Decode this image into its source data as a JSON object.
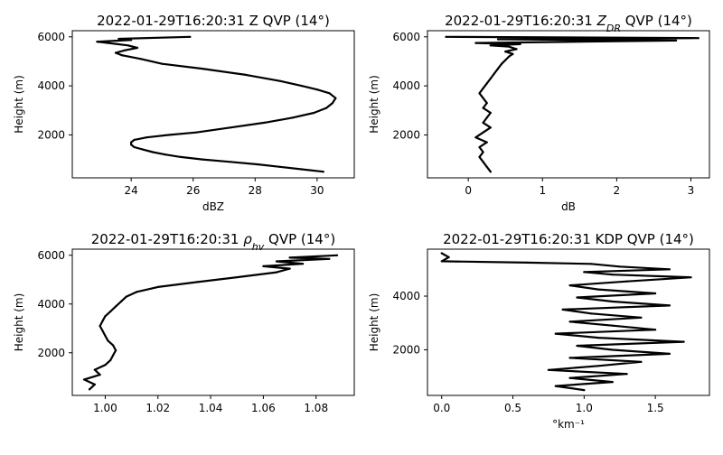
{
  "chart_data": [
    {
      "type": "line",
      "title": "2022-01-29T16:20:31 Z QVP (14°)",
      "xlabel": "dBZ",
      "ylabel": "Height (m)",
      "xlim": [
        22.1,
        31.2
      ],
      "ylim": [
        250,
        6250
      ],
      "xticks": [
        24,
        26,
        28,
        30
      ],
      "xticklabels": [
        "24",
        "26",
        "28",
        "30"
      ],
      "yticks": [
        2000,
        4000,
        6000
      ],
      "yticklabels": [
        "2000",
        "4000",
        "6000"
      ],
      "series": [
        {
          "x": [
            30.2,
            29.5,
            28.8,
            28.1,
            27.2,
            26.3,
            25.6,
            25.1,
            24.7,
            24.4,
            24.1,
            24.0,
            24.0,
            24.1,
            24.5,
            25.2,
            26.1,
            27.2,
            28.3,
            29.2,
            29.9,
            30.3,
            30.5,
            30.6,
            30.4,
            30.0,
            29.5,
            28.8,
            27.7,
            26.3,
            25.0,
            24.3,
            23.7,
            23.5,
            23.8,
            24.2,
            23.9,
            22.9,
            24.0,
            23.6,
            25.9
          ],
          "y": [
            500,
            600,
            700,
            800,
            900,
            1000,
            1100,
            1200,
            1300,
            1400,
            1500,
            1600,
            1700,
            1800,
            1900,
            2000,
            2100,
            2300,
            2500,
            2700,
            2900,
            3100,
            3300,
            3500,
            3700,
            3850,
            4000,
            4200,
            4450,
            4700,
            4900,
            5100,
            5250,
            5350,
            5450,
            5550,
            5650,
            5800,
            5870,
            5920,
            6000
          ]
        }
      ]
    },
    {
      "type": "line",
      "title": "2022-01-29T16:20:31 Z_DR QVP (14°)",
      "xlabel": "dB",
      "ylabel": "Height (m)",
      "xlim": [
        -0.55,
        3.25
      ],
      "ylim": [
        250,
        6250
      ],
      "xticks": [
        0,
        1,
        2,
        3
      ],
      "xticklabels": [
        "0",
        "1",
        "2",
        "3"
      ],
      "yticks": [
        2000,
        4000,
        6000
      ],
      "yticklabels": [
        "2000",
        "4000",
        "6000"
      ],
      "series": [
        {
          "x": [
            0.3,
            0.25,
            0.2,
            0.15,
            0.2,
            0.15,
            0.25,
            0.1,
            0.2,
            0.3,
            0.2,
            0.25,
            0.3,
            0.2,
            0.25,
            0.2,
            0.15,
            0.2,
            0.25,
            0.3,
            0.35,
            0.4,
            0.45,
            0.5,
            0.55,
            0.6,
            0.5,
            0.65,
            0.55,
            0.3,
            0.7,
            0.1,
            1.5,
            2.8,
            0.4,
            3.1,
            -0.3
          ],
          "y": [
            500,
            700,
            900,
            1100,
            1300,
            1500,
            1700,
            1900,
            2100,
            2300,
            2500,
            2700,
            2900,
            3100,
            3300,
            3500,
            3700,
            3900,
            4100,
            4300,
            4500,
            4700,
            4900,
            5050,
            5200,
            5300,
            5400,
            5500,
            5600,
            5650,
            5700,
            5750,
            5800,
            5850,
            5900,
            5950,
            6000
          ]
        }
      ]
    },
    {
      "type": "line",
      "title": "2022-01-29T16:20:31 ρ_hv QVP (14°)",
      "xlabel": "",
      "ylabel": "Height (m)",
      "xlim": [
        0.9875,
        1.0945
      ],
      "ylim": [
        250,
        6250
      ],
      "xticks": [
        1.0,
        1.02,
        1.04,
        1.06,
        1.08
      ],
      "xticklabels": [
        "1.00",
        "1.02",
        "1.04",
        "1.06",
        "1.08"
      ],
      "yticks": [
        2000,
        4000,
        6000
      ],
      "yticklabels": [
        "2000",
        "4000",
        "6000"
      ],
      "series": [
        {
          "x": [
            0.994,
            0.996,
            0.992,
            0.998,
            0.996,
            1.0,
            1.002,
            1.003,
            1.004,
            1.003,
            1.001,
            1.0,
            0.999,
            0.998,
            0.999,
            1.0,
            1.002,
            1.004,
            1.006,
            1.008,
            1.012,
            1.02,
            1.035,
            1.05,
            1.065,
            1.07,
            1.06,
            1.075,
            1.065,
            1.085,
            1.07,
            1.088
          ],
          "y": [
            500,
            700,
            900,
            1100,
            1300,
            1500,
            1700,
            1900,
            2100,
            2300,
            2500,
            2700,
            2900,
            3100,
            3300,
            3500,
            3700,
            3900,
            4100,
            4300,
            4500,
            4700,
            4900,
            5100,
            5300,
            5450,
            5550,
            5650,
            5750,
            5850,
            5900,
            6000
          ]
        }
      ]
    },
    {
      "type": "line",
      "title": "2022-01-29T16:20:31 KDP QVP (14°)",
      "xlabel": "°km⁻¹",
      "ylabel": "Height (m)",
      "xlim": [
        -0.1,
        1.88
      ],
      "ylim": [
        300,
        5750
      ],
      "xticks": [
        0.0,
        0.5,
        1.0,
        1.5
      ],
      "xticklabels": [
        "0.0",
        "0.5",
        "1.0",
        "1.5"
      ],
      "yticks": [
        2000,
        4000
      ],
      "yticklabels": [
        "2000",
        "4000"
      ],
      "series": [
        {
          "x": [
            1.0,
            0.8,
            1.2,
            0.9,
            1.3,
            0.75,
            1.1,
            1.4,
            0.9,
            1.6,
            1.2,
            0.95,
            1.7,
            1.1,
            0.8,
            1.5,
            1.2,
            0.9,
            1.4,
            1.05,
            0.85,
            1.6,
            1.2,
            0.95,
            1.5,
            1.1,
            0.9,
            1.3,
            1.75,
            1.2,
            1.0,
            1.6,
            1.25,
            1.05,
            0.6,
            0.0,
            0.05,
            0.0
          ],
          "y": [
            500,
            650,
            800,
            950,
            1100,
            1250,
            1400,
            1550,
            1700,
            1850,
            2000,
            2150,
            2300,
            2450,
            2600,
            2750,
            2900,
            3050,
            3200,
            3350,
            3500,
            3650,
            3800,
            3950,
            4100,
            4250,
            4400,
            4550,
            4700,
            4800,
            4900,
            5000,
            5100,
            5200,
            5250,
            5300,
            5450,
            5600
          ]
        }
      ]
    }
  ]
}
